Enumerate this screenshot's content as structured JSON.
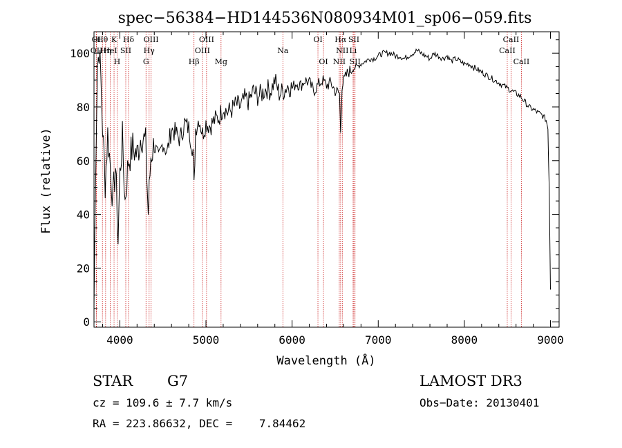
{
  "chart_data": {
    "type": "line",
    "title": "spec−56384−HD144536N080934M01_sp06−059.fits",
    "xlabel": "Wavelength (Å)",
    "ylabel": "Flux (relative)",
    "xlim": [
      3700,
      9100
    ],
    "ylim": [
      -2,
      108
    ],
    "xticks": [
      4000,
      5000,
      6000,
      7000,
      8000,
      9000
    ],
    "yticks": [
      0,
      20,
      40,
      60,
      80,
      100
    ],
    "series": [
      {
        "name": "flux",
        "x": [
          3700,
          3720,
          3740,
          3760,
          3780,
          3800,
          3830,
          3860,
          3890,
          3920,
          3950,
          3980,
          4000,
          4030,
          4060,
          4100,
          4150,
          4200,
          4250,
          4300,
          4330,
          4340,
          4360,
          4400,
          4450,
          4500,
          4550,
          4600,
          4650,
          4700,
          4750,
          4800,
          4850,
          4861,
          4880,
          4920,
          4960,
          5000,
          5050,
          5100,
          5150,
          5200,
          5250,
          5300,
          5350,
          5400,
          5450,
          5500,
          5550,
          5600,
          5650,
          5700,
          5750,
          5800,
          5850,
          5900,
          5950,
          6000,
          6050,
          6100,
          6150,
          6200,
          6250,
          6300,
          6350,
          6400,
          6450,
          6500,
          6550,
          6563,
          6580,
          6620,
          6650,
          6700,
          6750,
          6800,
          6850,
          6900,
          6950,
          7000,
          7050,
          7100,
          7150,
          7200,
          7250,
          7300,
          7350,
          7400,
          7450,
          7500,
          7550,
          7600,
          7650,
          7700,
          7750,
          7800,
          7850,
          7900,
          7950,
          8000,
          8050,
          8100,
          8150,
          8200,
          8250,
          8300,
          8350,
          8400,
          8450,
          8500,
          8550,
          8600,
          8650,
          8700,
          8750,
          8800,
          8850,
          8900,
          8930,
          8950,
          8970,
          8985,
          9000
        ],
        "values": [
          5,
          60,
          95,
          102,
          90,
          72,
          52,
          70,
          58,
          45,
          58,
          30,
          55,
          68,
          45,
          60,
          65,
          62,
          70,
          66,
          40,
          48,
          62,
          66,
          60,
          67,
          63,
          72,
          70,
          68,
          74,
          72,
          64,
          50,
          72,
          76,
          70,
          74,
          73,
          75,
          76,
          80,
          78,
          79,
          81,
          80,
          83,
          82,
          86,
          84,
          85,
          87,
          86,
          90,
          85,
          86,
          88,
          87,
          89,
          88,
          90,
          89,
          86,
          88,
          90,
          88,
          89,
          86,
          85,
          71,
          88,
          91,
          93,
          94,
          95,
          96,
          97,
          98,
          98,
          99,
          100,
          100,
          100,
          99,
          99,
          98,
          99,
          100,
          101,
          100,
          99,
          98,
          100,
          99,
          98,
          99,
          97,
          98,
          97,
          96,
          96,
          95,
          94,
          93,
          92,
          91,
          90,
          89,
          88,
          87,
          86,
          85,
          84,
          82,
          80,
          79,
          78,
          77,
          76,
          75,
          72,
          50,
          12
        ]
      }
    ],
    "lines": [
      {
        "label": "Hθ",
        "wavelength": 3798
      },
      {
        "label": "K",
        "wavelength": 3933
      },
      {
        "label": "Hδ",
        "wavelength": 4101
      },
      {
        "label": "OIII",
        "wavelength": 4363
      },
      {
        "label": "OIII",
        "wavelength": 5007
      },
      {
        "label": "OI",
        "wavelength": 6300
      },
      {
        "label": "Hα",
        "wavelength": 6563
      },
      {
        "label": "SII",
        "wavelength": 6717
      },
      {
        "label": "CaII",
        "wavelength": 8542
      },
      {
        "label": "OI",
        "wavelength": 3727
      },
      {
        "label": "HeI",
        "wavelength": 3889
      },
      {
        "label": "SII",
        "wavelength": 4069
      },
      {
        "label": "Hγ",
        "wavelength": 4340
      },
      {
        "label": "OIII",
        "wavelength": 4959
      },
      {
        "label": "Na",
        "wavelength": 5893
      },
      {
        "label": "NII",
        "wavelength": 6583
      },
      {
        "label": "Li",
        "wavelength": 6708
      },
      {
        "label": "CaII",
        "wavelength": 8498
      },
      {
        "label": "OII",
        "wavelength": 3729
      },
      {
        "label": "Hη",
        "wavelength": 3835
      },
      {
        "label": "H",
        "wavelength": 3968
      },
      {
        "label": "G",
        "wavelength": 4304
      },
      {
        "label": "Hβ",
        "wavelength": 4861
      },
      {
        "label": "Mg",
        "wavelength": 5175
      },
      {
        "label": "OI",
        "wavelength": 6364
      },
      {
        "label": "NII",
        "wavelength": 6548
      },
      {
        "label": "SII",
        "wavelength": 6731
      },
      {
        "label": "CaII",
        "wavelength": 8662
      }
    ]
  },
  "info": {
    "object_class": "STAR",
    "subclass": "G7",
    "redshift": "cz = 109.6 ± 7.7 km/s",
    "coords": "RA = 223.86632, DEC =    7.84462",
    "survey": "LAMOST DR3",
    "obs_date": "Obs−Date: 20130401"
  }
}
